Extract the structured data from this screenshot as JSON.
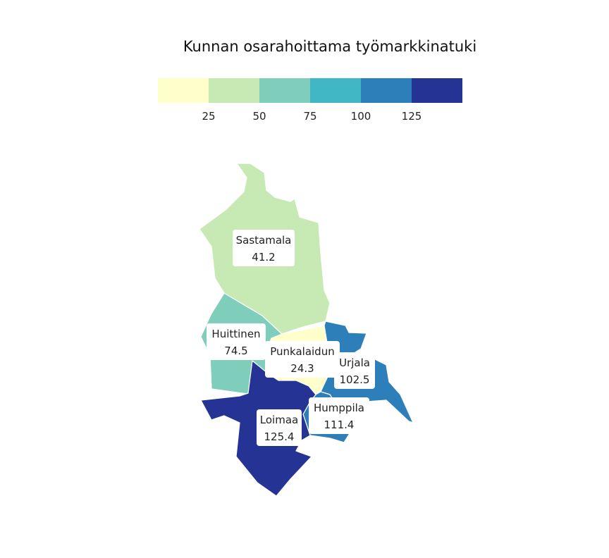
{
  "title": "Kunnan osarahoittama työmarkkinatuki",
  "legend": {
    "colors": [
      "#ffffcc",
      "#c7e9b4",
      "#7fcdbb",
      "#41b6c4",
      "#2c7fb8",
      "#253494"
    ],
    "ticks": [
      "25",
      "50",
      "75",
      "100",
      "125"
    ]
  },
  "municipalities": [
    {
      "name": "Sastamala",
      "value": "41.2",
      "color": "#c7e9b4"
    },
    {
      "name": "Huittinen",
      "value": "74.5",
      "color": "#7fcdbb"
    },
    {
      "name": "Punkalaidun",
      "value": "24.3",
      "color": "#ffffcc"
    },
    {
      "name": "Urjala",
      "value": "102.5",
      "color": "#2c7fb8"
    },
    {
      "name": "Humppila",
      "value": "111.4",
      "color": "#2c7fb8"
    },
    {
      "name": "Loimaa",
      "value": "125.4",
      "color": "#253494"
    }
  ]
}
